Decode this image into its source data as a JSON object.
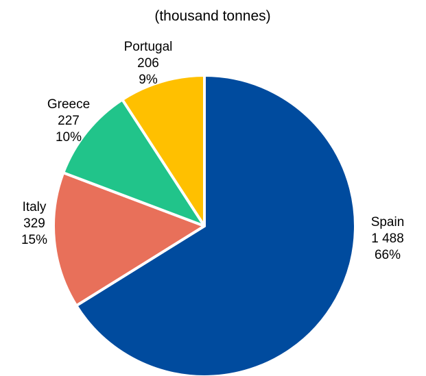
{
  "chart_data": {
    "type": "pie",
    "subtitle": "(thousand tonnes)",
    "slices": [
      {
        "label": "Spain",
        "value": 1488,
        "value_text": "1 488",
        "percent": "66%",
        "color": "#004b9e"
      },
      {
        "label": "Italy",
        "value": 329,
        "value_text": "329",
        "percent": "15%",
        "color": "#e8705a"
      },
      {
        "label": "Greece",
        "value": 227,
        "value_text": "227",
        "percent": "10%",
        "color": "#21c48a"
      },
      {
        "label": "Portugal",
        "value": 206,
        "value_text": "206",
        "percent": "9%",
        "color": "#ffc000"
      }
    ],
    "start_angle_deg": 0,
    "direction": "clockwise",
    "legend": "none"
  }
}
